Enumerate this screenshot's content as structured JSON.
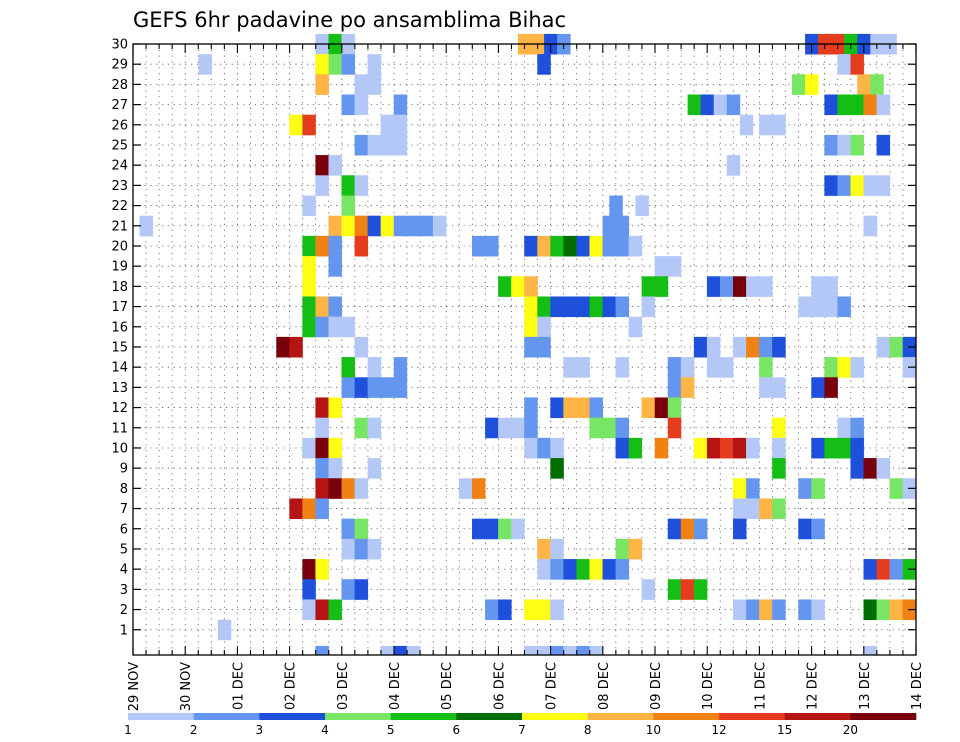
{
  "chart_data": {
    "type": "heatmap",
    "title": "GEFS 6hr padavine po ansamblima Bihac",
    "x_tick_labels": [
      "29 NOV",
      "30 NOV",
      "01 DEC",
      "02 DEC",
      "03 DEC",
      "04 DEC",
      "05 DEC",
      "06 DEC",
      "07 DEC",
      "08 DEC",
      "09 DEC",
      "10 DEC",
      "11 DEC",
      "12 DEC",
      "13 DEC",
      "14 DEC"
    ],
    "y_tick_labels": [
      "1",
      "2",
      "3",
      "4",
      "5",
      "6",
      "7",
      "8",
      "9",
      "10",
      "11",
      "12",
      "13",
      "14",
      "15",
      "16",
      "17",
      "18",
      "19",
      "20",
      "21",
      "22",
      "23",
      "24",
      "25",
      "26",
      "27",
      "28",
      "29",
      "30"
    ],
    "x_range_days": [
      0,
      15
    ],
    "y_range": [
      0,
      30
    ],
    "grid": true,
    "colorbar": {
      "labels": [
        "1",
        "2",
        "3",
        "4",
        "5",
        "6",
        "7",
        "8",
        "10",
        "12",
        "15",
        "20"
      ],
      "colors": [
        "#b4c8f8",
        "#6496f0",
        "#1e50dc",
        "#78e664",
        "#14be14",
        "#006e00",
        "#ffff14",
        "#ffb446",
        "#f08214",
        "#e63c1e",
        "#b41414",
        "#78000a"
      ]
    },
    "cells": [
      [
        3.62,
        30,
        1
      ],
      [
        3.87,
        30,
        5
      ],
      [
        4.12,
        30,
        1
      ],
      [
        7.5,
        30,
        8
      ],
      [
        7.75,
        30,
        8
      ],
      [
        8.0,
        30,
        3
      ],
      [
        8.25,
        30,
        2
      ],
      [
        13.0,
        30,
        3
      ],
      [
        13.25,
        30,
        10
      ],
      [
        13.5,
        30,
        10
      ],
      [
        13.75,
        30,
        5
      ],
      [
        14.0,
        30,
        3
      ],
      [
        14.25,
        30,
        1
      ],
      [
        14.5,
        30,
        1
      ],
      [
        1.38,
        29,
        1
      ],
      [
        3.62,
        29,
        7
      ],
      [
        3.87,
        29,
        4
      ],
      [
        4.12,
        29,
        2
      ],
      [
        4.62,
        29,
        1
      ],
      [
        7.87,
        29,
        3
      ],
      [
        13.62,
        29,
        1
      ],
      [
        13.87,
        29,
        10
      ],
      [
        3.62,
        28,
        8
      ],
      [
        4.37,
        28,
        1
      ],
      [
        4.62,
        28,
        1
      ],
      [
        12.75,
        28,
        4
      ],
      [
        13.0,
        28,
        7
      ],
      [
        14.0,
        28,
        8
      ],
      [
        14.25,
        28,
        4
      ],
      [
        4.12,
        27,
        2
      ],
      [
        4.37,
        27,
        1
      ],
      [
        5.12,
        27,
        2
      ],
      [
        10.75,
        27,
        5
      ],
      [
        11.0,
        27,
        3
      ],
      [
        11.25,
        27,
        1
      ],
      [
        11.5,
        27,
        2
      ],
      [
        13.37,
        27,
        3
      ],
      [
        13.62,
        27,
        5
      ],
      [
        13.87,
        27,
        5
      ],
      [
        14.12,
        27,
        9
      ],
      [
        14.37,
        27,
        1
      ],
      [
        3.12,
        26,
        7
      ],
      [
        3.37,
        26,
        10
      ],
      [
        4.87,
        26,
        1
      ],
      [
        5.12,
        26,
        1
      ],
      [
        11.75,
        26,
        1
      ],
      [
        12.12,
        26,
        1
      ],
      [
        12.37,
        26,
        1
      ],
      [
        4.37,
        25,
        2
      ],
      [
        4.62,
        25,
        1
      ],
      [
        4.87,
        25,
        1
      ],
      [
        5.12,
        25,
        1
      ],
      [
        13.37,
        25,
        2
      ],
      [
        13.62,
        25,
        1
      ],
      [
        13.87,
        25,
        4
      ],
      [
        14.37,
        25,
        3
      ],
      [
        3.62,
        24,
        12
      ],
      [
        3.87,
        24,
        1
      ],
      [
        11.5,
        24,
        1
      ],
      [
        3.62,
        23,
        1
      ],
      [
        4.12,
        23,
        5
      ],
      [
        4.37,
        23,
        1
      ],
      [
        13.37,
        23,
        3
      ],
      [
        13.62,
        23,
        2
      ],
      [
        13.87,
        23,
        7
      ],
      [
        14.12,
        23,
        1
      ],
      [
        14.37,
        23,
        1
      ],
      [
        3.37,
        22,
        1
      ],
      [
        4.12,
        22,
        4
      ],
      [
        9.25,
        22,
        2
      ],
      [
        9.75,
        22,
        1
      ],
      [
        0.25,
        21,
        1
      ],
      [
        3.87,
        21,
        8
      ],
      [
        4.12,
        21,
        7
      ],
      [
        4.37,
        21,
        9
      ],
      [
        4.62,
        21,
        3
      ],
      [
        4.87,
        21,
        7
      ],
      [
        5.12,
        21,
        2
      ],
      [
        5.37,
        21,
        2
      ],
      [
        5.62,
        21,
        2
      ],
      [
        5.87,
        21,
        1
      ],
      [
        9.12,
        21,
        2
      ],
      [
        9.37,
        21,
        2
      ],
      [
        14.12,
        21,
        1
      ],
      [
        3.37,
        20,
        5
      ],
      [
        3.62,
        20,
        9
      ],
      [
        3.87,
        20,
        2
      ],
      [
        4.37,
        20,
        10
      ],
      [
        6.62,
        20,
        2
      ],
      [
        6.87,
        20,
        2
      ],
      [
        7.62,
        20,
        3
      ],
      [
        7.87,
        20,
        8
      ],
      [
        8.12,
        20,
        5
      ],
      [
        8.37,
        20,
        6
      ],
      [
        8.62,
        20,
        3
      ],
      [
        8.87,
        20,
        7
      ],
      [
        9.12,
        20,
        2
      ],
      [
        9.37,
        20,
        2
      ],
      [
        9.62,
        20,
        1
      ],
      [
        3.37,
        19,
        7
      ],
      [
        3.87,
        19,
        2
      ],
      [
        10.12,
        19,
        1
      ],
      [
        10.37,
        19,
        1
      ],
      [
        3.37,
        18,
        7
      ],
      [
        7.12,
        18,
        5
      ],
      [
        7.37,
        18,
        7
      ],
      [
        7.62,
        18,
        8
      ],
      [
        9.87,
        18,
        5
      ],
      [
        10.12,
        18,
        5
      ],
      [
        11.12,
        18,
        3
      ],
      [
        11.37,
        18,
        2
      ],
      [
        11.62,
        18,
        12
      ],
      [
        11.87,
        18,
        1
      ],
      [
        12.12,
        18,
        1
      ],
      [
        13.12,
        18,
        1
      ],
      [
        13.37,
        18,
        1
      ],
      [
        3.37,
        17,
        5
      ],
      [
        3.62,
        17,
        8
      ],
      [
        3.87,
        17,
        2
      ],
      [
        7.62,
        17,
        7
      ],
      [
        7.87,
        17,
        5
      ],
      [
        8.12,
        17,
        3
      ],
      [
        8.37,
        17,
        3
      ],
      [
        8.62,
        17,
        3
      ],
      [
        8.87,
        17,
        5
      ],
      [
        9.12,
        17,
        3
      ],
      [
        9.37,
        17,
        2
      ],
      [
        9.87,
        17,
        1
      ],
      [
        12.87,
        17,
        1
      ],
      [
        13.12,
        17,
        1
      ],
      [
        13.37,
        17,
        1
      ],
      [
        13.62,
        17,
        2
      ],
      [
        3.37,
        16,
        5
      ],
      [
        3.62,
        16,
        2
      ],
      [
        3.87,
        16,
        1
      ],
      [
        4.12,
        16,
        1
      ],
      [
        7.62,
        16,
        7
      ],
      [
        7.87,
        16,
        1
      ],
      [
        9.62,
        16,
        1
      ],
      [
        2.87,
        15,
        12
      ],
      [
        3.12,
        15,
        11
      ],
      [
        4.37,
        15,
        1
      ],
      [
        7.62,
        15,
        2
      ],
      [
        7.87,
        15,
        2
      ],
      [
        10.87,
        15,
        3
      ],
      [
        11.12,
        15,
        1
      ],
      [
        11.62,
        15,
        1
      ],
      [
        11.87,
        15,
        9
      ],
      [
        12.12,
        15,
        2
      ],
      [
        12.37,
        15,
        3
      ],
      [
        14.37,
        15,
        1
      ],
      [
        14.62,
        15,
        4
      ],
      [
        14.87,
        15,
        3
      ],
      [
        4.12,
        14,
        5
      ],
      [
        4.62,
        14,
        1
      ],
      [
        5.12,
        14,
        2
      ],
      [
        8.37,
        14,
        1
      ],
      [
        8.62,
        14,
        1
      ],
      [
        9.37,
        14,
        1
      ],
      [
        10.37,
        14,
        2
      ],
      [
        10.62,
        14,
        1
      ],
      [
        11.12,
        14,
        1
      ],
      [
        11.37,
        14,
        1
      ],
      [
        12.12,
        14,
        4
      ],
      [
        13.37,
        14,
        4
      ],
      [
        13.62,
        14,
        7
      ],
      [
        13.87,
        14,
        1
      ],
      [
        14.87,
        14,
        1
      ],
      [
        4.12,
        13,
        2
      ],
      [
        4.37,
        13,
        3
      ],
      [
        4.62,
        13,
        2
      ],
      [
        4.87,
        13,
        2
      ],
      [
        5.12,
        13,
        2
      ],
      [
        10.37,
        13,
        2
      ],
      [
        10.62,
        13,
        8
      ],
      [
        12.12,
        13,
        1
      ],
      [
        12.37,
        13,
        1
      ],
      [
        13.12,
        13,
        3
      ],
      [
        13.37,
        13,
        12
      ],
      [
        3.62,
        12,
        11
      ],
      [
        3.87,
        12,
        7
      ],
      [
        7.62,
        12,
        2
      ],
      [
        8.12,
        12,
        3
      ],
      [
        8.37,
        12,
        8
      ],
      [
        8.62,
        12,
        8
      ],
      [
        8.87,
        12,
        2
      ],
      [
        9.87,
        12,
        8
      ],
      [
        10.12,
        12,
        12
      ],
      [
        10.37,
        12,
        4
      ],
      [
        3.62,
        11,
        1
      ],
      [
        4.37,
        11,
        4
      ],
      [
        4.62,
        11,
        1
      ],
      [
        6.87,
        11,
        3
      ],
      [
        7.12,
        11,
        1
      ],
      [
        7.37,
        11,
        1
      ],
      [
        7.62,
        11,
        2
      ],
      [
        8.87,
        11,
        4
      ],
      [
        9.12,
        11,
        4
      ],
      [
        9.37,
        11,
        2
      ],
      [
        10.37,
        11,
        10
      ],
      [
        12.37,
        11,
        7
      ],
      [
        13.62,
        11,
        1
      ],
      [
        13.87,
        11,
        2
      ],
      [
        3.37,
        10,
        1
      ],
      [
        3.62,
        10,
        12
      ],
      [
        3.87,
        10,
        7
      ],
      [
        7.62,
        10,
        1
      ],
      [
        7.87,
        10,
        2
      ],
      [
        8.12,
        10,
        1
      ],
      [
        9.37,
        10,
        3
      ],
      [
        9.62,
        10,
        5
      ],
      [
        10.12,
        10,
        9
      ],
      [
        10.87,
        10,
        7
      ],
      [
        11.12,
        10,
        11
      ],
      [
        11.37,
        10,
        10
      ],
      [
        11.62,
        10,
        11
      ],
      [
        11.87,
        10,
        1
      ],
      [
        12.37,
        10,
        1
      ],
      [
        13.12,
        10,
        3
      ],
      [
        13.37,
        10,
        5
      ],
      [
        13.62,
        10,
        5
      ],
      [
        13.87,
        10,
        3
      ],
      [
        3.62,
        9,
        2
      ],
      [
        3.87,
        9,
        1
      ],
      [
        4.62,
        9,
        1
      ],
      [
        8.12,
        9,
        6
      ],
      [
        12.37,
        9,
        5
      ],
      [
        13.87,
        9,
        3
      ],
      [
        14.12,
        9,
        12
      ],
      [
        14.37,
        9,
        1
      ],
      [
        3.62,
        8,
        11
      ],
      [
        3.87,
        8,
        12
      ],
      [
        4.12,
        8,
        9
      ],
      [
        4.37,
        8,
        1
      ],
      [
        6.37,
        8,
        1
      ],
      [
        6.62,
        8,
        9
      ],
      [
        11.62,
        8,
        7
      ],
      [
        11.87,
        8,
        2
      ],
      [
        12.87,
        8,
        2
      ],
      [
        13.12,
        8,
        4
      ],
      [
        14.62,
        8,
        4
      ],
      [
        14.87,
        8,
        1
      ],
      [
        3.12,
        7,
        11
      ],
      [
        3.37,
        7,
        9
      ],
      [
        3.62,
        7,
        2
      ],
      [
        11.62,
        7,
        1
      ],
      [
        11.87,
        7,
        1
      ],
      [
        12.12,
        7,
        8
      ],
      [
        12.37,
        7,
        4
      ],
      [
        4.12,
        6,
        2
      ],
      [
        4.37,
        6,
        4
      ],
      [
        6.62,
        6,
        3
      ],
      [
        6.87,
        6,
        3
      ],
      [
        7.12,
        6,
        4
      ],
      [
        7.37,
        6,
        1
      ],
      [
        10.37,
        6,
        3
      ],
      [
        10.62,
        6,
        9
      ],
      [
        10.87,
        6,
        2
      ],
      [
        11.62,
        6,
        3
      ],
      [
        12.87,
        6,
        3
      ],
      [
        13.12,
        6,
        2
      ],
      [
        4.12,
        5,
        1
      ],
      [
        4.37,
        5,
        2
      ],
      [
        4.62,
        5,
        1
      ],
      [
        7.87,
        5,
        8
      ],
      [
        8.12,
        5,
        1
      ],
      [
        9.37,
        5,
        4
      ],
      [
        9.62,
        5,
        8
      ],
      [
        3.37,
        4,
        12
      ],
      [
        3.62,
        4,
        7
      ],
      [
        7.87,
        4,
        1
      ],
      [
        8.12,
        4,
        2
      ],
      [
        8.37,
        4,
        3
      ],
      [
        8.62,
        4,
        5
      ],
      [
        8.87,
        4,
        7
      ],
      [
        9.12,
        4,
        3
      ],
      [
        9.37,
        4,
        2
      ],
      [
        14.12,
        4,
        3
      ],
      [
        14.37,
        4,
        10
      ],
      [
        14.62,
        4,
        2
      ],
      [
        14.87,
        4,
        5
      ],
      [
        3.37,
        3,
        3
      ],
      [
        4.12,
        3,
        2
      ],
      [
        4.37,
        3,
        3
      ],
      [
        9.87,
        3,
        1
      ],
      [
        10.37,
        3,
        5
      ],
      [
        10.62,
        3,
        10
      ],
      [
        10.87,
        3,
        5
      ],
      [
        3.37,
        2,
        1
      ],
      [
        3.62,
        2,
        11
      ],
      [
        3.87,
        2,
        5
      ],
      [
        6.87,
        2,
        2
      ],
      [
        7.12,
        2,
        3
      ],
      [
        7.62,
        2,
        7
      ],
      [
        7.87,
        2,
        7
      ],
      [
        8.12,
        2,
        1
      ],
      [
        11.62,
        2,
        1
      ],
      [
        11.87,
        2,
        2
      ],
      [
        12.12,
        2,
        8
      ],
      [
        12.37,
        2,
        2
      ],
      [
        12.87,
        2,
        2
      ],
      [
        13.12,
        2,
        1
      ],
      [
        14.12,
        2,
        6
      ],
      [
        14.37,
        2,
        4
      ],
      [
        14.62,
        2,
        8
      ],
      [
        14.87,
        2,
        9
      ],
      [
        1.75,
        1,
        1
      ]
    ],
    "bottom_strip": [
      [
        3.62,
        2
      ],
      [
        4.87,
        1
      ],
      [
        5.12,
        3
      ],
      [
        5.37,
        1
      ],
      [
        7.62,
        1
      ],
      [
        7.87,
        1
      ],
      [
        8.12,
        2
      ],
      [
        8.37,
        1
      ],
      [
        8.62,
        2
      ],
      [
        8.87,
        1
      ],
      [
        14.12,
        1
      ]
    ]
  }
}
